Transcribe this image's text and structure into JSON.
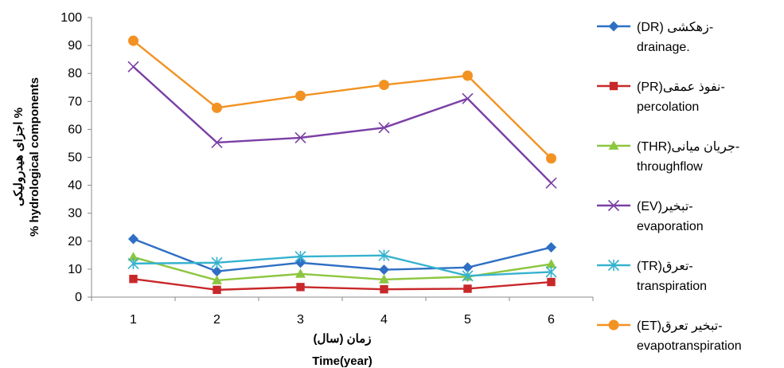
{
  "chart_data": {
    "type": "line",
    "categories": [
      "1",
      "2",
      "3",
      "4",
      "5",
      "6"
    ],
    "xlabel_fa": "زمان (سال)",
    "xlabel_en": "Time(year)",
    "ylabel_fa": "اجزای هیدرولیکی %",
    "ylabel_en": "% hydrological components",
    "ylim": [
      0,
      100
    ],
    "yticks": [
      "0",
      "10",
      "20",
      "30",
      "40",
      "50",
      "60",
      "70",
      "80",
      "90",
      "100"
    ],
    "grid": false,
    "legend_position": "right",
    "series": [
      {
        "name": "(DR) زهکشی-",
        "name2": "drainage.",
        "color": "#2e6fc4",
        "marker": "diamond",
        "values": [
          20.8,
          9.2,
          12.3,
          9.8,
          10.6,
          17.8
        ]
      },
      {
        "name": "(PR)نفوذ عمقی-",
        "name2": "percolation",
        "color": "#c8282a",
        "marker": "square",
        "values": [
          6.5,
          2.6,
          3.6,
          2.8,
          3.0,
          5.4
        ]
      },
      {
        "name": "(THR)جریان میانی-",
        "name2": "throughflow",
        "color": "#8cc63f",
        "marker": "triangle",
        "values": [
          14.3,
          6.0,
          8.3,
          6.3,
          7.3,
          11.8
        ]
      },
      {
        "name": "(EV)تبخیر-",
        "name2": "evaporation",
        "color": "#7a3fa6",
        "marker": "x",
        "values": [
          82.4,
          55.3,
          57.0,
          60.6,
          71.0,
          40.8
        ]
      },
      {
        "name": "(TR)تعرق-",
        "name2": "transpiration",
        "color": "#36b2cf",
        "marker": "star",
        "values": [
          12.0,
          12.3,
          14.5,
          14.9,
          7.6,
          9.0
        ]
      },
      {
        "name": "(ET)تبخیر تعرق-",
        "name2": "evapotranspiration",
        "color": "#f29222",
        "marker": "circle",
        "values": [
          91.7,
          67.7,
          72.0,
          75.9,
          79.2,
          49.6
        ]
      }
    ]
  }
}
